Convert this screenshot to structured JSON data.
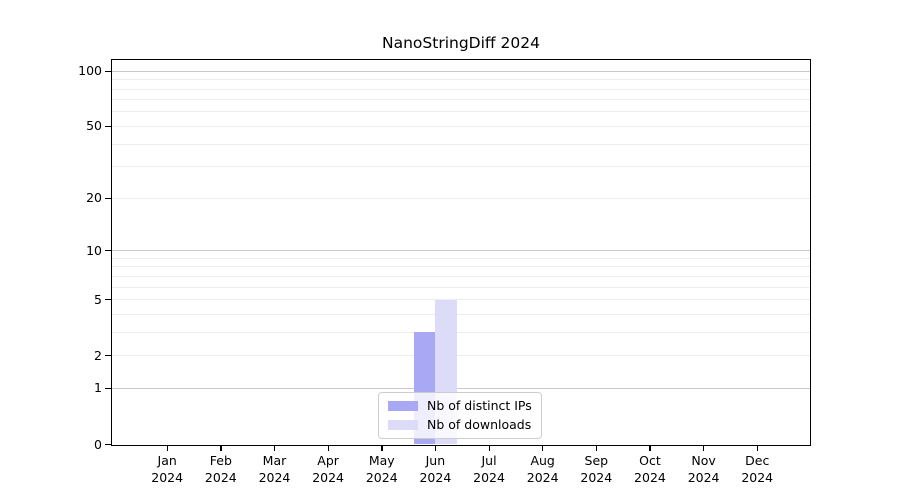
{
  "window": {
    "background": "#ffffff"
  },
  "chart_data": {
    "type": "bar",
    "title": "NanoStringDiff 2024",
    "categories": [
      "Jan 2024",
      "Feb 2024",
      "Mar 2024",
      "Apr 2024",
      "May 2024",
      "Jun 2024",
      "Jul 2024",
      "Aug 2024",
      "Sep 2024",
      "Oct 2024",
      "Nov 2024",
      "Dec 2024"
    ],
    "series": [
      {
        "name": "Nb of distinct IPs",
        "color": "#a8a8f5",
        "values": [
          0,
          0,
          0,
          0,
          0,
          3,
          0,
          0,
          0,
          0,
          0,
          0
        ]
      },
      {
        "name": "Nb of downloads",
        "color": "#dcdcf8",
        "values": [
          0,
          0,
          0,
          0,
          0,
          5,
          0,
          0,
          0,
          0,
          0,
          0
        ]
      }
    ],
    "xlabel": "",
    "ylabel": "",
    "yscale": "log1p",
    "ylim": [
      0,
      115
    ],
    "yticks": [
      0,
      1,
      2,
      5,
      10,
      20,
      50,
      100
    ],
    "gridlines": {
      "major": [
        1,
        10,
        100
      ],
      "minor": [
        2,
        3,
        4,
        5,
        6,
        7,
        8,
        9,
        20,
        30,
        40,
        50,
        60,
        70,
        80,
        90
      ]
    },
    "grid_colors": {
      "major": "#c9c9c9",
      "minor": "#ededed"
    },
    "axis_color": "#000000",
    "legend_position": "bottom-center-inside",
    "grid": "horizontal"
  }
}
